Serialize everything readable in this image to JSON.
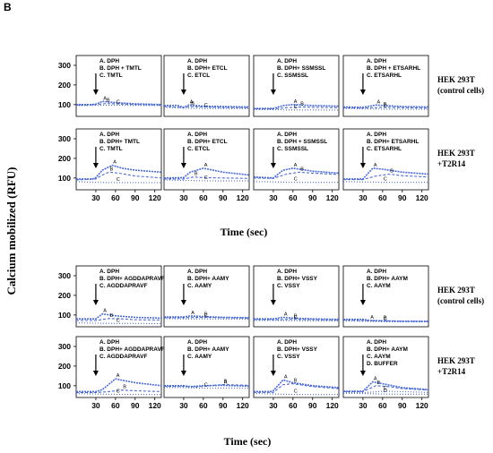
{
  "figure_label": "B",
  "y_axis_label": "Calcium mobilized (RFU)",
  "x_axis_label": "Time (sec)",
  "row_labels": [
    [
      "HEK 293T",
      "(control cells)"
    ],
    [
      "HEK 293T",
      "+T2R14"
    ],
    [
      "HEK 293T",
      "(control cells)"
    ],
    [
      "HEK 293T",
      "+T2R14"
    ]
  ],
  "colors": {
    "trace": "#4a6ad6",
    "frame": "#000000"
  },
  "arrow_icon": "down-arrow-icon",
  "chart_data": {
    "type": "line",
    "xlabel": "Time (sec)",
    "ylabel": "Calcium mobilized (RFU)",
    "xticks": [
      30,
      60,
      90,
      120
    ],
    "yticks": [
      100,
      200,
      300
    ],
    "xlim": [
      0,
      130
    ],
    "ylim": [
      40,
      350
    ],
    "ligand_addition_time": 30,
    "panels": [
      {
        "legend": [
          "A. DPH",
          "B. DPH + TMTL",
          "C. TMTL"
        ],
        "series": [
          {
            "label": "A",
            "x": [
              0,
              20,
              30,
              40,
              60,
              90,
              130
            ],
            "y": [
              100,
              100,
              102,
              116,
              110,
              104,
              100
            ]
          },
          {
            "label": "B",
            "x": [
              0,
              20,
              30,
              45,
              60,
              90,
              130
            ],
            "y": [
              98,
              98,
              100,
              105,
              104,
              100,
              98
            ]
          },
          {
            "label": "C",
            "x": [
              0,
              30,
              60,
              90,
              130
            ],
            "y": [
              95,
              96,
              97,
              96,
              95
            ]
          }
        ]
      },
      {
        "legend": [
          "A. DPH",
          "B. DPH+ ETCL",
          "C. ETCL"
        ],
        "series": [
          {
            "label": "A",
            "x": [
              0,
              20,
              30,
              38,
              60,
              90,
              130
            ],
            "y": [
              95,
              96,
              86,
              98,
              92,
              90,
              88
            ]
          },
          {
            "label": "B",
            "x": [
              0,
              30,
              40,
              60,
              90,
              130
            ],
            "y": [
              90,
              85,
              90,
              88,
              85,
              84
            ]
          },
          {
            "label": "C",
            "x": [
              0,
              30,
              60,
              90,
              130
            ],
            "y": [
              86,
              82,
              80,
              80,
              79
            ]
          }
        ]
      },
      {
        "legend": [
          "A. DPH",
          "B. DPH+ SSMSSL",
          "C. SSMSSL"
        ],
        "series": [
          {
            "label": "A",
            "x": [
              0,
              30,
              45,
              60,
              90,
              130
            ],
            "y": [
              80,
              80,
              95,
              100,
              95,
              92
            ]
          },
          {
            "label": "B",
            "x": [
              0,
              30,
              50,
              70,
              90,
              130
            ],
            "y": [
              78,
              78,
              84,
              88,
              86,
              84
            ]
          },
          {
            "label": "C",
            "x": [
              0,
              30,
              60,
              90,
              130
            ],
            "y": [
              75,
              74,
              73,
              73,
              72
            ]
          }
        ]
      },
      {
        "legend": [
          "A. DPH",
          "B. DPH + ETSARHL",
          "C. ETSARHL"
        ],
        "series": [
          {
            "label": "A",
            "x": [
              0,
              30,
              50,
              70,
              90,
              130
            ],
            "y": [
              88,
              86,
              98,
              94,
              90,
              88
            ]
          },
          {
            "label": "B",
            "x": [
              0,
              30,
              60,
              90,
              130
            ],
            "y": [
              84,
              82,
              86,
              84,
              82
            ]
          },
          {
            "label": "C",
            "x": [
              0,
              30,
              60,
              90,
              130
            ],
            "y": [
              80,
              78,
              77,
              76,
              76
            ]
          }
        ]
      },
      {
        "legend": [
          "A. DPH",
          "B. DPH+ TMTL",
          "C. TMTL"
        ],
        "series": [
          {
            "label": "A",
            "x": [
              0,
              25,
              30,
              40,
              55,
              70,
              90,
              130
            ],
            "y": [
              95,
              95,
              102,
              140,
              165,
              150,
              140,
              130
            ]
          },
          {
            "label": "B",
            "x": [
              0,
              30,
              40,
              50,
              65,
              90,
              130
            ],
            "y": [
              90,
              95,
              115,
              130,
              125,
              110,
              100
            ]
          },
          {
            "label": "C",
            "x": [
              0,
              30,
              60,
              90,
              130
            ],
            "y": [
              82,
              78,
              77,
              77,
              76
            ]
          }
        ]
      },
      {
        "legend": [
          "A. DPH",
          "B. DPH+ ETCL",
          "C. ETCL"
        ],
        "series": [
          {
            "label": "A",
            "x": [
              0,
              30,
              40,
              60,
              90,
              130
            ],
            "y": [
              100,
              102,
              130,
              150,
              130,
              115
            ]
          },
          {
            "label": "B",
            "x": [
              0,
              30,
              45,
              60,
              90,
              130
            ],
            "y": [
              95,
              95,
              105,
              102,
              100,
              98
            ]
          },
          {
            "label": "C",
            "x": [
              0,
              30,
              60,
              90,
              130
            ],
            "y": [
              90,
              88,
              86,
              85,
              85
            ]
          }
        ]
      },
      {
        "legend": [
          "A. DPH",
          "B. DPH + SSMSSL",
          "C. SSMSSL"
        ],
        "series": [
          {
            "label": "A",
            "x": [
              0,
              30,
              45,
              60,
              90,
              130
            ],
            "y": [
              105,
              100,
              140,
              150,
              135,
              125
            ]
          },
          {
            "label": "B",
            "x": [
              0,
              30,
              50,
              70,
              90,
              130
            ],
            "y": [
              100,
              98,
              120,
              130,
              125,
              118
            ]
          },
          {
            "label": "C",
            "x": [
              0,
              30,
              60,
              90,
              130
            ],
            "y": [
              82,
              80,
              78,
              78,
              78
            ]
          }
        ]
      },
      {
        "legend": [
          "A. DPH",
          "B. DPH+ ETSARHL",
          "C. ETSARHL"
        ],
        "series": [
          {
            "label": "A",
            "x": [
              0,
              30,
              45,
              60,
              90,
              130
            ],
            "y": [
              95,
              95,
              150,
              145,
              130,
              120
            ]
          },
          {
            "label": "B",
            "x": [
              0,
              30,
              50,
              70,
              90,
              130
            ],
            "y": [
              92,
              92,
              110,
              120,
              112,
              105
            ]
          },
          {
            "label": "C",
            "x": [
              0,
              30,
              60,
              90,
              130
            ],
            "y": [
              82,
              80,
              78,
              78,
              78
            ]
          }
        ]
      },
      {
        "legend": [
          "A. DPH",
          "B. DPH+ AGDDAPRAVF",
          "C. AGDDAPRAVF"
        ],
        "series": [
          {
            "label": "A",
            "x": [
              0,
              30,
              40,
              60,
              90,
              130
            ],
            "y": [
              80,
              80,
              105,
              96,
              88,
              84
            ]
          },
          {
            "label": "B",
            "x": [
              0,
              30,
              50,
              70,
              90,
              130
            ],
            "y": [
              72,
              72,
              82,
              80,
              76,
              74
            ]
          },
          {
            "label": "C",
            "x": [
              0,
              30,
              60,
              90,
              130
            ],
            "y": [
              60,
              58,
              57,
              57,
              56
            ]
          }
        ]
      },
      {
        "legend": [
          "A. DPH",
          "B. DPH+ AAMY",
          "C. AAMY"
        ],
        "series": [
          {
            "label": "A",
            "x": [
              0,
              30,
              40,
              60,
              90,
              130
            ],
            "y": [
              90,
              90,
              95,
              92,
              88,
              86
            ]
          },
          {
            "label": "B",
            "x": [
              0,
              30,
              60,
              90,
              130
            ],
            "y": [
              86,
              86,
              88,
              86,
              84
            ]
          },
          {
            "label": "C",
            "x": [
              0,
              30,
              60,
              90,
              130
            ],
            "y": [
              82,
              80,
              80,
              79,
              79
            ]
          }
        ]
      },
      {
        "legend": [
          "A. DPH",
          "B. DPH+ VSSY",
          "C. VSSY"
        ],
        "series": [
          {
            "label": "A",
            "x": [
              0,
              30,
              45,
              60,
              90,
              130
            ],
            "y": [
              80,
              80,
              88,
              84,
              80,
              78
            ]
          },
          {
            "label": "B",
            "x": [
              0,
              30,
              60,
              90,
              130
            ],
            "y": [
              76,
              76,
              78,
              76,
              74
            ]
          },
          {
            "label": "C",
            "x": [
              0,
              30,
              60,
              90,
              130
            ],
            "y": [
              72,
              72,
              71,
              70,
              70
            ]
          }
        ]
      },
      {
        "legend": [
          "A. DPH",
          "B. DPH+ AAYM",
          "C. AAYM"
        ],
        "series": [
          {
            "label": "A",
            "x": [
              0,
              30,
              40,
              60,
              90,
              130
            ],
            "y": [
              78,
              78,
              72,
              70,
              68,
              68
            ]
          },
          {
            "label": "B",
            "x": [
              0,
              30,
              60,
              90,
              130
            ],
            "y": [
              74,
              72,
              70,
              68,
              67
            ]
          },
          {
            "label": "C",
            "x": [
              0,
              30,
              60,
              90,
              130
            ],
            "y": [
              70,
              68,
              66,
              66,
              65
            ]
          }
        ]
      },
      {
        "legend": [
          "A. DPH",
          "B. DPH+ AGDDAPRAVF",
          "C. AGDDAPRAVF"
        ],
        "series": [
          {
            "label": "A",
            "x": [
              0,
              30,
              40,
              60,
              90,
              130
            ],
            "y": [
              70,
              70,
              80,
              135,
              115,
              100
            ]
          },
          {
            "label": "B",
            "x": [
              0,
              30,
              50,
              70,
              90,
              130
            ],
            "y": [
              65,
              65,
              70,
              78,
              74,
              70
            ]
          },
          {
            "label": "C",
            "x": [
              0,
              30,
              60,
              90,
              130
            ],
            "y": [
              60,
              58,
              56,
              56,
              55
            ]
          }
        ]
      },
      {
        "legend": [
          "A. DPH",
          "B. DPH+ AAMY",
          "C. AAMY"
        ],
        "series": [
          {
            "label": "A",
            "x": [
              0,
              30,
              40,
              60,
              90,
              130
            ],
            "y": [
              100,
              100,
              95,
              100,
              102,
              98
            ]
          },
          {
            "label": "B",
            "x": [
              0,
              30,
              50,
              70,
              90,
              130
            ],
            "y": [
              96,
              96,
              94,
              100,
              106,
              102
            ]
          },
          {
            "label": "C",
            "x": [
              0,
              30,
              60,
              90,
              130
            ],
            "y": [
              92,
              90,
              88,
              88,
              88
            ]
          }
        ]
      },
      {
        "legend": [
          "A. DPH",
          "B. DPH+ VSSY",
          "C. VSSY"
        ],
        "series": [
          {
            "label": "A",
            "x": [
              0,
              25,
              30,
              45,
              60,
              90,
              130
            ],
            "y": [
              70,
              70,
              75,
              130,
              115,
              100,
              90
            ]
          },
          {
            "label": "B",
            "x": [
              0,
              30,
              45,
              60,
              90,
              130
            ],
            "y": [
              66,
              66,
              105,
              110,
              95,
              85
            ]
          },
          {
            "label": "C",
            "x": [
              0,
              30,
              60,
              90,
              130
            ],
            "y": [
              60,
              58,
              56,
              55,
              55
            ]
          }
        ]
      },
      {
        "legend": [
          "A. DPH",
          "B. DPH+ AAYM",
          "C. AAYM",
          "D. BUFFER"
        ],
        "series": [
          {
            "label": "A",
            "x": [
              0,
              30,
              45,
              60,
              90,
              130
            ],
            "y": [
              72,
              72,
              120,
              110,
              90,
              80
            ]
          },
          {
            "label": "B",
            "x": [
              0,
              30,
              50,
              70,
              90,
              130
            ],
            "y": [
              70,
              70,
              100,
              95,
              85,
              78
            ]
          },
          {
            "label": "C",
            "x": [
              0,
              30,
              60,
              90,
              130
            ],
            "y": [
              66,
              64,
              72,
              70,
              66
            ]
          },
          {
            "label": "D",
            "x": [
              0,
              30,
              60,
              90,
              130
            ],
            "y": [
              62,
              60,
              58,
              57,
              57
            ]
          }
        ]
      }
    ]
  }
}
